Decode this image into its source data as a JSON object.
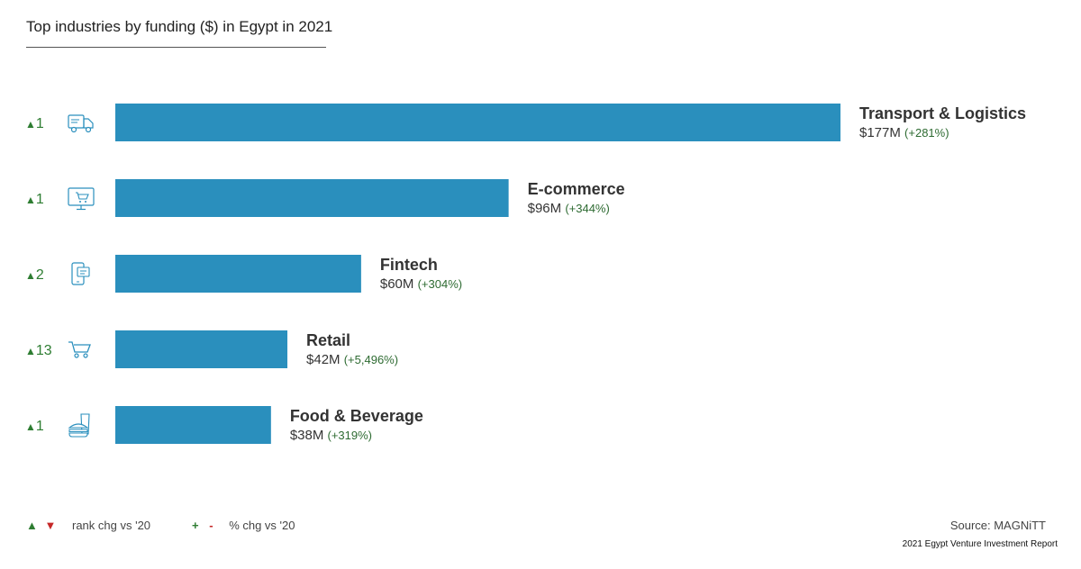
{
  "title": "Top industries by funding ($) in Egypt in 2021",
  "colors": {
    "bar": "#2a8fbd",
    "up": "#2e7d32",
    "down": "#c62828",
    "icon": "#2a8fbd"
  },
  "chart_data": {
    "type": "bar",
    "orientation": "horizontal",
    "title": "Top industries by funding ($) in Egypt in 2021",
    "categories": [
      "Transport &  Logistics",
      "E-commerce",
      "Fintech",
      "Retail",
      "Food & Beverage"
    ],
    "values": [
      177,
      96,
      60,
      42,
      38
    ],
    "value_labels": [
      "$177M",
      "$96M",
      "$60M",
      "$42M",
      "$38M"
    ],
    "pct_change_labels": [
      "(+281%)",
      "(+344%)",
      "(+304%)",
      "(+5,496%)",
      "(+319%)"
    ],
    "rank_change": [
      "1",
      "1",
      "2",
      "13",
      "1"
    ],
    "rank_direction": [
      "up",
      "up",
      "up",
      "up",
      "up"
    ],
    "icons": [
      "truck-icon",
      "monitor-cart-icon",
      "phone-payment-icon",
      "shopping-cart-icon",
      "food-beverage-icon"
    ],
    "unit": "$M",
    "xlim": [
      0,
      177
    ]
  },
  "legend": {
    "up_symbol": "▲",
    "down_symbol": "▼",
    "rank_label": "rank chg vs '20",
    "plus_symbol": "+",
    "minus_symbol": "-",
    "pct_label": "% chg vs '20"
  },
  "source": "Source: MAGNiTT",
  "report": "2021 Egypt Venture Investment Report"
}
